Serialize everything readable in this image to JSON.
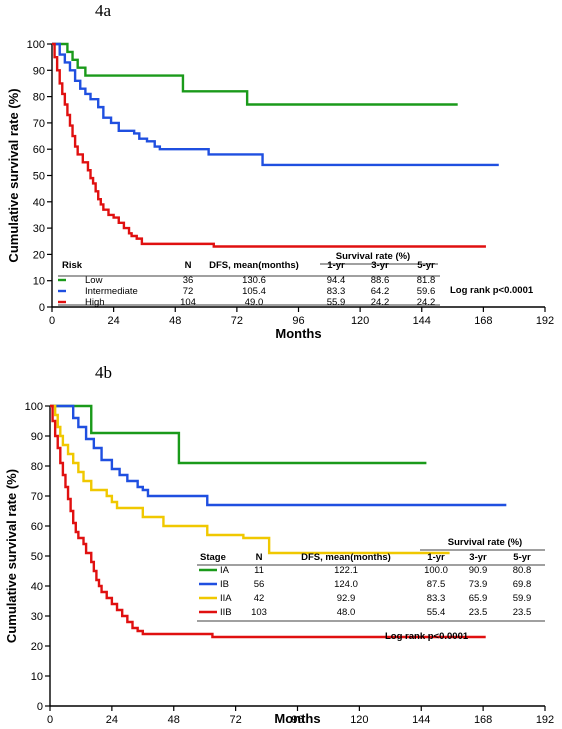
{
  "chart_data": [
    {
      "type": "line",
      "panel_label": "4a",
      "xlabel": "Months",
      "ylabel": "Cumulative survival rate (%)",
      "xlim": [
        0,
        192
      ],
      "ylim": [
        0,
        100
      ],
      "x_ticks": [
        "0",
        "24",
        "48",
        "72",
        "96",
        "120",
        "144",
        "168",
        "192"
      ],
      "y_ticks": [
        "0",
        "10",
        "20",
        "30",
        "40",
        "50",
        "60",
        "70",
        "80",
        "90",
        "100"
      ],
      "annotation": "Log rank p<0.0001",
      "table": {
        "group_header": "Risk",
        "headers": [
          "N",
          "DFS, mean(months)",
          "1-yr",
          "3-yr",
          "5-yr"
        ],
        "survival_header": "Survival rate (%)",
        "rows": [
          {
            "label": "Low",
            "values": [
              "36",
              "130.6",
              "94.4",
              "88.6",
              "81.8"
            ]
          },
          {
            "label": "Intermediate",
            "values": [
              "72",
              "105.4",
              "83.3",
              "64.2",
              "59.6"
            ]
          },
          {
            "label": "High",
            "values": [
              "104",
              "49.0",
              "55.9",
              "24.2",
              "24.2"
            ]
          }
        ]
      },
      "series": [
        {
          "name": "Low",
          "color": "#1a9a1a",
          "points": [
            [
              0,
              100
            ],
            [
              5,
              100
            ],
            [
              6,
              97
            ],
            [
              8,
              94
            ],
            [
              10,
              91
            ],
            [
              13,
              88
            ],
            [
              50,
              88
            ],
            [
              51,
              82
            ],
            [
              75,
              82
            ],
            [
              76,
              77
            ],
            [
              158,
              77
            ]
          ]
        },
        {
          "name": "Intermediate",
          "color": "#1f4fe0",
          "points": [
            [
              0,
              100
            ],
            [
              3,
              96
            ],
            [
              5,
              93
            ],
            [
              7,
              90
            ],
            [
              9,
              86
            ],
            [
              11,
              83
            ],
            [
              13,
              81
            ],
            [
              15,
              79
            ],
            [
              18,
              76
            ],
            [
              20,
              72
            ],
            [
              23,
              70
            ],
            [
              26,
              67
            ],
            [
              32,
              66
            ],
            [
              34,
              64
            ],
            [
              37,
              63
            ],
            [
              40,
              61
            ],
            [
              42,
              60
            ],
            [
              60,
              60
            ],
            [
              61,
              58
            ],
            [
              80,
              58
            ],
            [
              82,
              54
            ],
            [
              174,
              54
            ]
          ]
        },
        {
          "name": "High",
          "color": "#e01010",
          "points": [
            [
              0,
              100
            ],
            [
              1,
              95
            ],
            [
              2,
              90
            ],
            [
              3,
              85
            ],
            [
              4,
              81
            ],
            [
              5,
              77
            ],
            [
              6,
              73
            ],
            [
              7,
              69
            ],
            [
              8,
              65
            ],
            [
              9,
              61
            ],
            [
              10,
              58
            ],
            [
              12,
              55
            ],
            [
              14,
              52
            ],
            [
              15,
              49
            ],
            [
              16,
              47
            ],
            [
              17,
              44
            ],
            [
              18,
              41
            ],
            [
              19,
              39
            ],
            [
              20,
              37
            ],
            [
              22,
              35
            ],
            [
              24,
              34
            ],
            [
              26,
              32
            ],
            [
              28,
              30
            ],
            [
              30,
              28
            ],
            [
              31,
              27
            ],
            [
              33,
              26
            ],
            [
              35,
              24
            ],
            [
              62,
              24
            ],
            [
              63,
              23
            ],
            [
              169,
              23
            ]
          ]
        }
      ]
    },
    {
      "type": "line",
      "panel_label": "4b",
      "xlabel": "Months",
      "ylabel": "Cumulative survival rate (%)",
      "xlim": [
        0,
        192
      ],
      "ylim": [
        0,
        100
      ],
      "x_ticks": [
        "0",
        "24",
        "48",
        "72",
        "96",
        "120",
        "144",
        "168",
        "192"
      ],
      "y_ticks": [
        "0",
        "10",
        "20",
        "30",
        "40",
        "50",
        "60",
        "70",
        "80",
        "90",
        "100"
      ],
      "annotation": "Log rank p<0.0001",
      "table": {
        "group_header": "Stage",
        "headers": [
          "N",
          "DFS, mean(months)",
          "1-yr",
          "3-yr",
          "5-yr"
        ],
        "survival_header": "Survival rate (%)",
        "rows": [
          {
            "label": "IA",
            "values": [
              "11",
              "122.1",
              "100.0",
              "90.9",
              "80.8"
            ]
          },
          {
            "label": "IB",
            "values": [
              "56",
              "124.0",
              "87.5",
              "73.9",
              "69.8"
            ]
          },
          {
            "label": "IIA",
            "values": [
              "42",
              "92.9",
              "83.3",
              "65.9",
              "59.9"
            ]
          },
          {
            "label": "IIB",
            "values": [
              "103",
              "48.0",
              "55.4",
              "23.5",
              "23.5"
            ]
          }
        ]
      },
      "series": [
        {
          "name": "IA",
          "color": "#1a9a1a",
          "points": [
            [
              0,
              100
            ],
            [
              15,
              100
            ],
            [
              16,
              91
            ],
            [
              49,
              91
            ],
            [
              50,
              81
            ],
            [
              146,
              81
            ]
          ]
        },
        {
          "name": "IB",
          "color": "#1f4fe0",
          "points": [
            [
              0,
              100
            ],
            [
              8,
              100
            ],
            [
              9,
              96
            ],
            [
              11,
              93
            ],
            [
              14,
              89
            ],
            [
              17,
              86
            ],
            [
              20,
              82
            ],
            [
              24,
              79
            ],
            [
              27,
              77
            ],
            [
              30,
              75
            ],
            [
              34,
              73
            ],
            [
              36,
              72
            ],
            [
              38,
              70
            ],
            [
              60,
              70
            ],
            [
              61,
              67
            ],
            [
              177,
              67
            ]
          ]
        },
        {
          "name": "IIA",
          "color": "#f0c800",
          "points": [
            [
              0,
              100
            ],
            [
              2,
              97
            ],
            [
              3,
              93
            ],
            [
              4,
              90
            ],
            [
              5,
              87
            ],
            [
              7,
              84
            ],
            [
              9,
              81
            ],
            [
              11,
              78
            ],
            [
              13,
              75
            ],
            [
              16,
              72
            ],
            [
              22,
              70
            ],
            [
              24,
              68
            ],
            [
              26,
              66
            ],
            [
              34,
              66
            ],
            [
              36,
              63
            ],
            [
              42,
              63
            ],
            [
              44,
              60
            ],
            [
              60,
              60
            ],
            [
              61,
              57
            ],
            [
              74,
              57
            ],
            [
              75,
              56
            ],
            [
              84,
              56
            ],
            [
              85,
              51
            ],
            [
              155,
              51
            ]
          ]
        },
        {
          "name": "IIB",
          "color": "#e01010",
          "points": [
            [
              0,
              100
            ],
            [
              1,
              95
            ],
            [
              2,
              90
            ],
            [
              3,
              86
            ],
            [
              4,
              81
            ],
            [
              5,
              77
            ],
            [
              6,
              73
            ],
            [
              7,
              69
            ],
            [
              8,
              65
            ],
            [
              9,
              61
            ],
            [
              10,
              58
            ],
            [
              11,
              56
            ],
            [
              13,
              54
            ],
            [
              14,
              51
            ],
            [
              16,
              48
            ],
            [
              17,
              45
            ],
            [
              18,
              42
            ],
            [
              19,
              40
            ],
            [
              20,
              38
            ],
            [
              22,
              36
            ],
            [
              24,
              34
            ],
            [
              26,
              32
            ],
            [
              28,
              30
            ],
            [
              30,
              28
            ],
            [
              32,
              26
            ],
            [
              34,
              25
            ],
            [
              36,
              24
            ],
            [
              62,
              24
            ],
            [
              63,
              23
            ],
            [
              169,
              23
            ]
          ]
        }
      ]
    }
  ]
}
